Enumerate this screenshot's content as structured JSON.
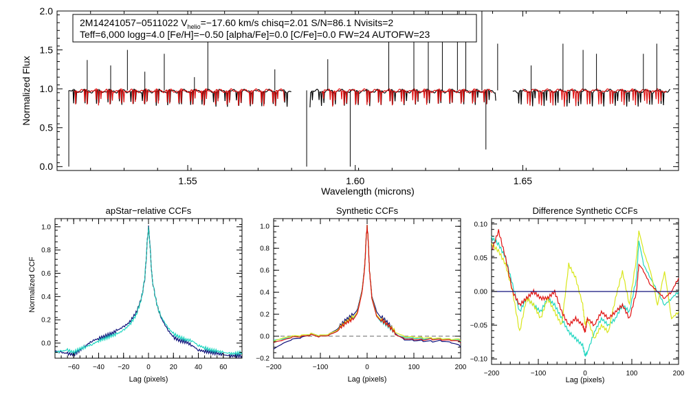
{
  "colors": {
    "background": "#ffffff",
    "axis": "#000000",
    "observed": "#000000",
    "model": "#e01010",
    "blue": "#10107a",
    "cyan": "#1fd6c0",
    "yellow": "#d8e61a",
    "red": "#e01010",
    "green": "#40a040",
    "orange": "#e07a10"
  },
  "chart_data": [
    {
      "id": "spectrum",
      "type": "line",
      "header_line1": {
        "a": "2M14241057−0511022  V",
        "sub": "helio",
        "b": "=−17.60 km/s  chisq=2.01  S/N=86.1  Nvisits=2"
      },
      "header_line2": "Teff=6,000 logg=4.0 [Fe/H]=−0.50 [alpha/Fe]=0.0 [C/Fe]=0.0 FW=24 AUTOFW=23",
      "xlabel": "Wavelength (microns)",
      "ylabel": "Normalized Flux",
      "xlim": [
        1.511,
        1.6965
      ],
      "ylim": [
        -0.05,
        2.0
      ],
      "xticks": [
        1.55,
        1.6,
        1.65
      ],
      "xtick_labels": [
        "1.55",
        "1.60",
        "1.65"
      ],
      "yticks": [
        0.0,
        0.5,
        1.0,
        1.5,
        2.0
      ],
      "ytick_labels": [
        "0.0",
        "0.5",
        "1.0",
        "1.5",
        "2.0"
      ],
      "series": [
        {
          "name": "observed",
          "color": "#000000",
          "segments": [
            [
              1.5145,
              1.581
            ],
            [
              1.5865,
              1.642
            ],
            [
              1.647,
              1.694
            ]
          ],
          "baseline": 0.97
        },
        {
          "name": "model",
          "color": "#e01010",
          "segments": [
            [
              1.516,
              1.579
            ],
            [
              1.59,
              1.641
            ],
            [
              1.65,
              1.693
            ]
          ],
          "baseline": 0.975
        }
      ],
      "spikes": [
        [
          1.52,
          1.37
        ],
        [
          1.527,
          1.3
        ],
        [
          1.532,
          1.5
        ],
        [
          1.5372,
          1.22
        ],
        [
          1.543,
          1.45
        ],
        [
          1.552,
          1.15
        ],
        [
          1.556,
          1.68
        ],
        [
          1.576,
          1.25
        ],
        [
          1.5918,
          1.38
        ],
        [
          1.61,
          1.72
        ],
        [
          1.6175,
          2.0
        ],
        [
          1.6218,
          2.0
        ],
        [
          1.626,
          2.0
        ],
        [
          1.6305,
          2.0
        ],
        [
          1.633,
          2.0
        ],
        [
          1.6378,
          2.0
        ],
        [
          1.6425,
          1.58
        ],
        [
          1.6525,
          1.3
        ],
        [
          1.662,
          1.58
        ],
        [
          1.668,
          1.5
        ],
        [
          1.672,
          1.45
        ],
        [
          1.686,
          1.45
        ],
        [
          1.69,
          1.58
        ]
      ],
      "dips": [
        [
          1.5145,
          0.0
        ],
        [
          1.5855,
          0.0
        ],
        [
          1.5985,
          0.0
        ],
        [
          1.639,
          0.22
        ]
      ]
    },
    {
      "id": "apstar_ccf",
      "type": "line",
      "title": "apStar−relative CCFs",
      "xlabel": "Lag (pixels)",
      "ylabel": "Normalized CCF",
      "xlim": [
        -75,
        75
      ],
      "ylim": [
        -0.13,
        1.07
      ],
      "xticks": [
        -60,
        -40,
        -20,
        0,
        20,
        40,
        60
      ],
      "xtick_labels": [
        "−60",
        "−40",
        "−20",
        "0",
        "20",
        "40",
        "60"
      ],
      "yticks": [
        0.0,
        0.2,
        0.4,
        0.6,
        0.8,
        1.0
      ],
      "ytick_labels": [
        "0.0",
        "0.2",
        "0.4",
        "0.6",
        "0.8",
        "1.0"
      ],
      "series": [
        {
          "name": "visit-1",
          "color": "#10107a",
          "x": [
            -75,
            -70,
            -65,
            -60,
            -55,
            -50,
            -45,
            -40,
            -35,
            -30,
            -25,
            -20,
            -15,
            -10,
            -7,
            -5,
            -3,
            -2,
            -1,
            0,
            1,
            2,
            3,
            5,
            7,
            10,
            15,
            20,
            25,
            30,
            35,
            40,
            45,
            50,
            55,
            60,
            65,
            70,
            75
          ],
          "y": [
            -0.07,
            -0.08,
            -0.09,
            -0.1,
            -0.06,
            -0.02,
            0.02,
            0.04,
            0.06,
            0.08,
            0.11,
            0.14,
            0.18,
            0.26,
            0.34,
            0.42,
            0.55,
            0.7,
            0.88,
            1.0,
            0.88,
            0.7,
            0.55,
            0.42,
            0.32,
            0.22,
            0.12,
            0.05,
            0.02,
            0.01,
            -0.02,
            -0.06,
            -0.07,
            -0.08,
            -0.09,
            -0.1,
            -0.11,
            -0.11,
            -0.11
          ]
        },
        {
          "name": "visit-2",
          "color": "#1fd6c0",
          "x": [
            -75,
            -70,
            -65,
            -60,
            -55,
            -50,
            -45,
            -40,
            -35,
            -30,
            -25,
            -20,
            -15,
            -10,
            -7,
            -5,
            -3,
            -2,
            -1,
            0,
            1,
            2,
            3,
            5,
            7,
            10,
            15,
            20,
            25,
            30,
            35,
            40,
            45,
            50,
            55,
            60,
            65,
            70,
            75
          ],
          "y": [
            -0.08,
            -0.07,
            -0.06,
            -0.08,
            -0.05,
            -0.03,
            -0.01,
            0.02,
            0.04,
            0.06,
            0.08,
            0.11,
            0.16,
            0.24,
            0.33,
            0.42,
            0.56,
            0.71,
            0.88,
            0.99,
            0.87,
            0.7,
            0.55,
            0.42,
            0.32,
            0.23,
            0.14,
            0.08,
            0.05,
            0.03,
            0.02,
            -0.02,
            -0.04,
            -0.06,
            -0.07,
            -0.08,
            -0.09,
            -0.09,
            -0.08
          ]
        },
        {
          "name": "visit-3",
          "color": "#2a8a8a",
          "dashed": true,
          "x": [
            -10,
            -7,
            -5,
            -3,
            -2,
            -1,
            0,
            1,
            2,
            3,
            5,
            7,
            10
          ],
          "y": [
            0.25,
            0.34,
            0.42,
            0.55,
            0.7,
            0.88,
            1.0,
            0.88,
            0.7,
            0.55,
            0.42,
            0.32,
            0.22
          ]
        }
      ]
    },
    {
      "id": "synthetic_ccf",
      "type": "line",
      "title": "Synthetic CCFs",
      "xlabel": "Lag (pixels)",
      "ylabel": "",
      "xlim": [
        -200,
        200
      ],
      "ylim": [
        -0.2,
        1.07
      ],
      "xticks": [
        -200,
        -100,
        0,
        100,
        200
      ],
      "xtick_labels": [
        "−200",
        "−100",
        "0",
        "100",
        "200"
      ],
      "yticks": [
        -0.2,
        0.0,
        0.2,
        0.4,
        0.6,
        0.8,
        1.0
      ],
      "ytick_labels": [
        "−0.2",
        "0.0",
        "0.2",
        "0.4",
        "0.6",
        "0.8",
        "1.0"
      ],
      "reference_line": 0.0,
      "series": [
        {
          "name": "visit-1",
          "color": "#10107a",
          "x": [
            -200,
            -180,
            -160,
            -140,
            -120,
            -100,
            -80,
            -60,
            -45,
            -30,
            -20,
            -10,
            -5,
            -2,
            0,
            2,
            5,
            10,
            20,
            30,
            45,
            60,
            80,
            100,
            120,
            140,
            160,
            180,
            200
          ],
          "y": [
            -0.13,
            -0.08,
            -0.04,
            -0.02,
            0.02,
            0.01,
            0.03,
            0.09,
            0.15,
            0.2,
            0.26,
            0.45,
            0.65,
            0.9,
            1.0,
            0.9,
            0.6,
            0.38,
            0.24,
            0.18,
            0.12,
            0.04,
            -0.02,
            -0.03,
            -0.04,
            -0.05,
            -0.05,
            -0.07,
            -0.1
          ]
        },
        {
          "name": "visit-2",
          "color": "#1fd6c0",
          "x": [
            -200,
            -180,
            -160,
            -140,
            -120,
            -100,
            -80,
            -60,
            -45,
            -30,
            -20,
            -10,
            -5,
            -2,
            0,
            2,
            5,
            10,
            20,
            30,
            45,
            60,
            80,
            100,
            120,
            140,
            160,
            180,
            200
          ],
          "y": [
            -0.05,
            -0.04,
            -0.02,
            -0.01,
            0.01,
            0.0,
            0.02,
            0.07,
            0.12,
            0.17,
            0.24,
            0.44,
            0.64,
            0.9,
            1.0,
            0.9,
            0.6,
            0.36,
            0.2,
            0.14,
            0.09,
            0.03,
            0.0,
            -0.01,
            -0.02,
            -0.03,
            -0.03,
            -0.04,
            -0.05
          ]
        },
        {
          "name": "visit-3",
          "color": "#d8e61a",
          "x": [
            -200,
            -180,
            -160,
            -140,
            -120,
            -100,
            -80,
            -60,
            -45,
            -30,
            -20,
            -10,
            -5,
            -2,
            0,
            2,
            5,
            10,
            20,
            30,
            45,
            60,
            80,
            100,
            120,
            140,
            160,
            180,
            200
          ],
          "y": [
            -0.06,
            -0.03,
            -0.01,
            0.0,
            0.02,
            0.01,
            0.03,
            0.08,
            0.13,
            0.18,
            0.24,
            0.44,
            0.64,
            0.9,
            1.0,
            0.9,
            0.6,
            0.37,
            0.21,
            0.16,
            0.1,
            0.05,
            0.01,
            0.0,
            -0.01,
            -0.02,
            -0.03,
            -0.04,
            -0.04
          ]
        },
        {
          "name": "visit-4",
          "color": "#e01010",
          "x": [
            -200,
            -180,
            -160,
            -140,
            -120,
            -100,
            -80,
            -60,
            -45,
            -30,
            -20,
            -10,
            -5,
            -2,
            0,
            2,
            5,
            10,
            20,
            30,
            45,
            60,
            80,
            100,
            120,
            140,
            160,
            180,
            200
          ],
          "y": [
            -0.07,
            -0.05,
            -0.02,
            -0.01,
            0.01,
            0.0,
            0.02,
            0.07,
            0.12,
            0.16,
            0.23,
            0.43,
            0.63,
            0.9,
            1.0,
            0.9,
            0.6,
            0.36,
            0.2,
            0.15,
            0.1,
            0.03,
            -0.01,
            -0.02,
            -0.03,
            -0.03,
            -0.04,
            -0.05,
            -0.06
          ]
        }
      ]
    },
    {
      "id": "difference_ccf",
      "type": "line",
      "title": "Difference Synthetic CCFs",
      "xlabel": "Lag (pixels)",
      "ylabel": "",
      "xlim": [
        -200,
        200
      ],
      "ylim": [
        -0.108,
        0.108
      ],
      "xticks": [
        -200,
        -100,
        0,
        100,
        200
      ],
      "xtick_labels": [
        "−200",
        "−100",
        "0",
        "100",
        "200"
      ],
      "yticks": [
        -0.1,
        -0.05,
        0.0,
        0.05,
        0.1
      ],
      "ytick_labels": [
        "−0.10",
        "−0.05",
        "0.00",
        "0.05",
        "0.10"
      ],
      "reference_line": 0.0,
      "series": [
        {
          "name": "cyan",
          "color": "#1fd6c0",
          "x": [
            -200,
            -185,
            -170,
            -155,
            -140,
            -125,
            -110,
            -95,
            -80,
            -65,
            -50,
            -35,
            -20,
            -5,
            0,
            5,
            20,
            35,
            50,
            65,
            80,
            95,
            110,
            115,
            125,
            140,
            155,
            170,
            185,
            200
          ],
          "y": [
            0.08,
            0.07,
            0.05,
            0.01,
            -0.03,
            -0.01,
            -0.02,
            -0.03,
            -0.01,
            -0.02,
            -0.04,
            -0.06,
            -0.07,
            -0.08,
            -0.095,
            -0.09,
            -0.06,
            -0.04,
            -0.05,
            -0.04,
            -0.02,
            -0.03,
            0.02,
            0.075,
            0.04,
            0.02,
            0.0,
            -0.02,
            -0.01,
            0.0
          ]
        },
        {
          "name": "yellow",
          "color": "#d8e61a",
          "x": [
            -200,
            -185,
            -170,
            -155,
            -140,
            -125,
            -110,
            -95,
            -80,
            -65,
            -50,
            -35,
            -20,
            -5,
            0,
            5,
            20,
            35,
            50,
            65,
            80,
            95,
            110,
            115,
            125,
            140,
            155,
            170,
            185,
            200
          ],
          "y": [
            0.07,
            0.06,
            0.04,
            0.0,
            -0.06,
            -0.01,
            -0.02,
            -0.04,
            -0.01,
            -0.03,
            -0.05,
            0.04,
            0.02,
            -0.02,
            -0.05,
            -0.04,
            -0.07,
            -0.05,
            -0.06,
            -0.01,
            0.03,
            -0.02,
            0.05,
            0.09,
            0.06,
            0.03,
            -0.02,
            0.03,
            -0.04,
            -0.03
          ]
        },
        {
          "name": "red",
          "color": "#e01010",
          "x": [
            -200,
            -185,
            -170,
            -155,
            -140,
            -125,
            -110,
            -95,
            -80,
            -65,
            -50,
            -35,
            -20,
            -5,
            0,
            5,
            20,
            35,
            50,
            65,
            80,
            95,
            110,
            115,
            125,
            140,
            155,
            170,
            185,
            200
          ],
          "y": [
            0.06,
            0.09,
            0.05,
            0.0,
            -0.02,
            -0.01,
            0.0,
            -0.01,
            -0.01,
            0.0,
            -0.03,
            -0.05,
            -0.04,
            -0.05,
            -0.06,
            -0.04,
            -0.05,
            -0.03,
            -0.04,
            -0.03,
            -0.02,
            -0.04,
            0.0,
            0.04,
            0.03,
            0.01,
            0.0,
            -0.01,
            0.0,
            0.02
          ]
        },
        {
          "name": "zero",
          "color": "#10107a",
          "x": [
            -200,
            200
          ],
          "y": [
            0.0,
            0.0
          ]
        }
      ]
    }
  ]
}
